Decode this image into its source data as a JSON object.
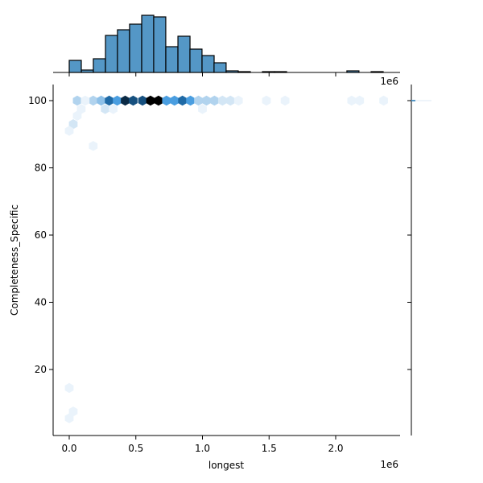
{
  "chart_data": {
    "type": "hexbin-jointplot",
    "title": "",
    "xlabel": "longest",
    "ylabel": "Completeness_Specific",
    "x_offset_label": "1e6",
    "x_scale": 1000000,
    "xlim": [
      -0.12,
      2.47
    ],
    "ylim": [
      1,
      105
    ],
    "x_ticks": [
      0.0,
      0.5,
      1.0,
      1.5,
      2.0
    ],
    "x_tick_labels": [
      "0.0",
      "0.5",
      "1.0",
      "1.5",
      "2.0"
    ],
    "y_ticks": [
      20,
      40,
      60,
      80,
      100
    ],
    "y_tick_labels": [
      "20",
      "40",
      "60",
      "80",
      "100"
    ],
    "grid": false,
    "colors": {
      "bar_fill": "#5497c6",
      "bar_edge": "#000000",
      "hex_scale": [
        "#eaf3fb",
        "#d3e6f5",
        "#b1d3ee",
        "#8dc0e8",
        "#4a9ee0",
        "#3a8bd0",
        "#1f6aa6",
        "#16507f",
        "#0b2a45",
        "#000000"
      ]
    },
    "marginal_x_histogram": {
      "bin_width_1e6": 0.0906,
      "bins": [
        {
          "x0": 0.0,
          "count": 15
        },
        {
          "x0": 0.091,
          "count": 3
        },
        {
          "x0": 0.181,
          "count": 17
        },
        {
          "x0": 0.272,
          "count": 46
        },
        {
          "x0": 0.362,
          "count": 53
        },
        {
          "x0": 0.453,
          "count": 60
        },
        {
          "x0": 0.544,
          "count": 71
        },
        {
          "x0": 0.634,
          "count": 69
        },
        {
          "x0": 0.725,
          "count": 32
        },
        {
          "x0": 0.816,
          "count": 45
        },
        {
          "x0": 0.906,
          "count": 29
        },
        {
          "x0": 0.997,
          "count": 21
        },
        {
          "x0": 1.087,
          "count": 12
        },
        {
          "x0": 1.178,
          "count": 2
        },
        {
          "x0": 1.269,
          "count": 1
        },
        {
          "x0": 1.45,
          "count": 1
        },
        {
          "x0": 1.541,
          "count": 1
        },
        {
          "x0": 2.084,
          "count": 2
        },
        {
          "x0": 2.266,
          "count": 1
        }
      ]
    },
    "marginal_y_histogram": {
      "note": "nearly all mass at ~100",
      "bins": [
        {
          "y": 100,
          "count": 480
        }
      ]
    },
    "hexbins": [
      {
        "x": 0.06,
        "y": 100,
        "level": 2
      },
      {
        "x": 0.18,
        "y": 100,
        "level": 2
      },
      {
        "x": 0.24,
        "y": 100,
        "level": 3
      },
      {
        "x": 0.3,
        "y": 100,
        "level": 6
      },
      {
        "x": 0.36,
        "y": 100,
        "level": 4
      },
      {
        "x": 0.42,
        "y": 100,
        "level": 8
      },
      {
        "x": 0.48,
        "y": 100,
        "level": 7
      },
      {
        "x": 0.55,
        "y": 100,
        "level": 7
      },
      {
        "x": 0.61,
        "y": 100,
        "level": 9
      },
      {
        "x": 0.67,
        "y": 100,
        "level": 9
      },
      {
        "x": 0.73,
        "y": 100,
        "level": 4
      },
      {
        "x": 0.79,
        "y": 100,
        "level": 4
      },
      {
        "x": 0.85,
        "y": 100,
        "level": 6
      },
      {
        "x": 0.91,
        "y": 100,
        "level": 4
      },
      {
        "x": 0.97,
        "y": 100,
        "level": 2
      },
      {
        "x": 1.03,
        "y": 100,
        "level": 2
      },
      {
        "x": 1.09,
        "y": 100,
        "level": 2
      },
      {
        "x": 1.15,
        "y": 100,
        "level": 1
      },
      {
        "x": 1.21,
        "y": 100,
        "level": 1
      },
      {
        "x": 1.27,
        "y": 100,
        "level": 0
      },
      {
        "x": 1.48,
        "y": 100,
        "level": 0
      },
      {
        "x": 1.62,
        "y": 100,
        "level": 0
      },
      {
        "x": 2.12,
        "y": 100,
        "level": 0
      },
      {
        "x": 2.18,
        "y": 100,
        "level": 0
      },
      {
        "x": 2.36,
        "y": 100,
        "level": 0
      },
      {
        "x": 0.12,
        "y": 100,
        "level": 0
      },
      {
        "x": 0.27,
        "y": 97.5,
        "level": 1
      },
      {
        "x": 0.33,
        "y": 97.5,
        "level": 0
      },
      {
        "x": 1.0,
        "y": 97.5,
        "level": 0
      },
      {
        "x": 0.09,
        "y": 97.5,
        "level": 0
      },
      {
        "x": 0.06,
        "y": 95.5,
        "level": 0
      },
      {
        "x": 0.03,
        "y": 93,
        "level": 1
      },
      {
        "x": 0.0,
        "y": 91,
        "level": 0
      },
      {
        "x": 0.18,
        "y": 86.5,
        "level": 0
      },
      {
        "x": 0.0,
        "y": 14.5,
        "level": 0
      },
      {
        "x": 0.03,
        "y": 7.5,
        "level": 0
      },
      {
        "x": 0.0,
        "y": 5.5,
        "level": 0
      }
    ]
  }
}
